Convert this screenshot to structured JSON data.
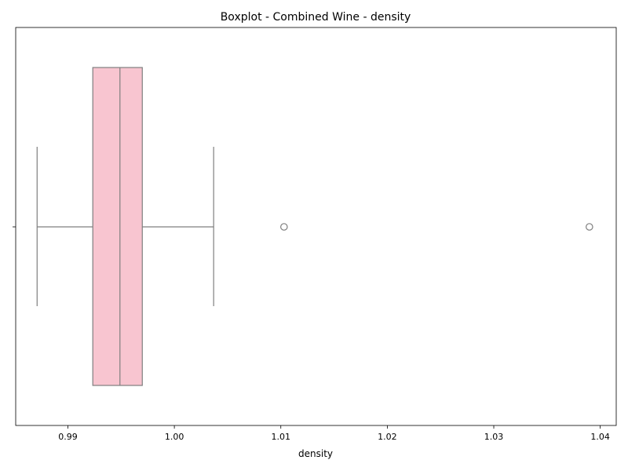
{
  "chart_data": {
    "type": "boxplot",
    "title": "Boxplot - Combined Wine - density",
    "xlabel": "density",
    "ylabel": "",
    "xlim": [
      0.9851,
      1.0415
    ],
    "xticks": [
      0.99,
      1.0,
      1.01,
      1.02,
      1.03,
      1.04
    ],
    "xtick_labels": [
      "0.99",
      "1.00",
      "1.01",
      "1.02",
      "1.03",
      "1.04"
    ],
    "grid": false,
    "box": {
      "whisker_low": 0.98711,
      "q1": 0.99234,
      "median": 0.99489,
      "q3": 0.99699,
      "whisker_high": 1.00369,
      "outliers": [
        1.0103,
        1.03898
      ]
    },
    "colors": {
      "box_fill": "#f8c5d0",
      "line": "#7f7f7f",
      "axis": "#000000"
    }
  }
}
